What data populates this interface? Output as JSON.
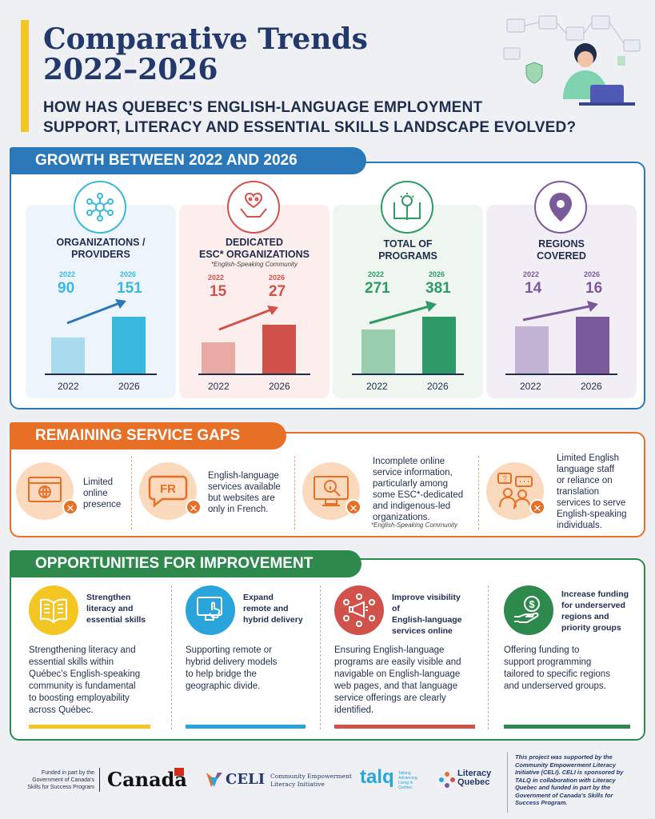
{
  "header": {
    "title_line1": "Comparative Trends",
    "title_line2": "2022–2026",
    "question_line1": "HOW HAS QUEBEC’S ENGLISH-LANGUAGE EMPLOYMENT",
    "question_line2": "SUPPORT, LITERACY AND ESSENTIAL SKILLS LANDSCAPE EVOLVED?"
  },
  "colors": {
    "navy": "#23396b",
    "yellow": "#f3c623",
    "blue_section": "#2b78b8",
    "orange_section": "#e86f26",
    "green_section": "#2e8a4c",
    "card1": "#3bb8dd",
    "card2": "#d1524b",
    "card3": "#2e9a66",
    "card4": "#7b5a9b"
  },
  "growth": {
    "heading": "GROWTH BETWEEN 2022 AND 2026",
    "cards": [
      {
        "label_line1": "ORGANIZATIONS /",
        "label_line2": "PROVIDERS",
        "sub": "",
        "year1": "2022",
        "year2": "2026",
        "value1": "90",
        "value2": "151",
        "x1": "2022",
        "x2": "2026",
        "icon": "network-icon"
      },
      {
        "label_line1": "DEDICATED",
        "label_line2": "ESC* ORGANIZATIONS",
        "sub": "*English-Speaking Community",
        "year1": "2022",
        "year2": "2026",
        "value1": "15",
        "value2": "27",
        "x1": "2022",
        "x2": "2026",
        "icon": "heart-hands-icon"
      },
      {
        "label_line1": "TOTAL OF",
        "label_line2": "PROGRAMS",
        "sub": "",
        "year1": "2022",
        "year2": "2026",
        "value1": "271",
        "value2": "381",
        "x1": "2022",
        "x2": "2026",
        "icon": "book-idea-icon"
      },
      {
        "label_line1": "REGIONS",
        "label_line2": "COVERED",
        "sub": "",
        "year1": "2022",
        "year2": "2026",
        "value1": "14",
        "value2": "16",
        "x1": "2022",
        "x2": "2026",
        "icon": "location-pin-icon"
      }
    ]
  },
  "gaps": {
    "heading": "REMAINING SERVICE GAPS",
    "items": [
      {
        "line1": "Limited",
        "line2": "online",
        "line3": "presence",
        "line4": "",
        "line5": "",
        "line6": "",
        "icon": "web-browser-icon"
      },
      {
        "line1": "English-language",
        "line2": "services available",
        "line3": "but websites are",
        "line4": "only in French.",
        "line5": "",
        "line6": "",
        "icon": "french-speech-icon",
        "badge": "FR"
      },
      {
        "line1": "Incomplete online",
        "line2": "service information,",
        "line3": "particularly among",
        "line4": "some ESC*-dedicated",
        "line5": "and indigenous-led",
        "line6": "organizations.",
        "note": "*English-Speaking Community",
        "icon": "search-info-icon"
      },
      {
        "line1": "Limited English",
        "line2": "language staff",
        "line3": "or reliance on",
        "line4": "translation",
        "line5": "services to serve",
        "line6": "English-speaking",
        "line7": "individuals.",
        "icon": "people-chat-icon"
      }
    ]
  },
  "opportunities": {
    "heading": "OPPORTUNITIES FOR IMPROVEMENT",
    "items": [
      {
        "head1": "Strengthen",
        "head2": "literacy and",
        "head3": "essential skills",
        "b1": "Strengthening literacy and",
        "b2": "essential skills within",
        "b3": "Québec’s English-speaking",
        "b4": "community is fundamental",
        "b5": "to boosting employability",
        "b6": "across Québec.",
        "icon": "open-book-icon"
      },
      {
        "head1": "Expand",
        "head2": "remote and",
        "head3": "hybrid delivery",
        "b1": "Supporting remote or",
        "b2": "hybrid delivery models",
        "b3": "to help bridge the",
        "b4": "geographic divide.",
        "b5": "",
        "b6": "",
        "icon": "remote-screen-icon"
      },
      {
        "head1": "Improve visibility of",
        "head2": "English-language",
        "head3": "services online",
        "b1": "Ensuring English-language",
        "b2": "programs are easily visible and",
        "b3": "navigable on English-language",
        "b4": "web pages, and that language",
        "b5": "service offerings are clearly",
        "b6": "identified.",
        "icon": "megaphone-network-icon"
      },
      {
        "head1": "Increase funding",
        "head2": "for underserved",
        "head3": "regions and",
        "head4": "priority groups",
        "b1": "Offering funding to",
        "b2": "support programming",
        "b3": "tailored to specific regions",
        "b4": "and underserved groups.",
        "b5": "",
        "b6": "",
        "icon": "hand-dollar-icon"
      }
    ]
  },
  "footer": {
    "funded_line1": "Funded in part by the",
    "funded_line2": "Government of Canada’s",
    "funded_line3": "Skills for Success Program",
    "canada": "Canada",
    "celi": "CELI",
    "celi_line1": "Community Empowerment",
    "celi_line2": "Literacy Initiative",
    "talq": "talq",
    "talq_line1": "Talking.",
    "talq_line2": "Advancing.",
    "talq_line3": "Living in",
    "talq_line4": "Québec.",
    "lq_line1": "Literacy",
    "lq_line2": "Quebec",
    "note1": "This project was supported by the",
    "note2": "Community Empowerment Literacy",
    "note3": "Initiative (CELI). CELI is sponsored by",
    "note4": "TALQ in collaboration with Literacy",
    "note5": "Quebec and funded in part by the",
    "note6": "Government of Canada’s Skills for",
    "note7": "Success Program."
  }
}
